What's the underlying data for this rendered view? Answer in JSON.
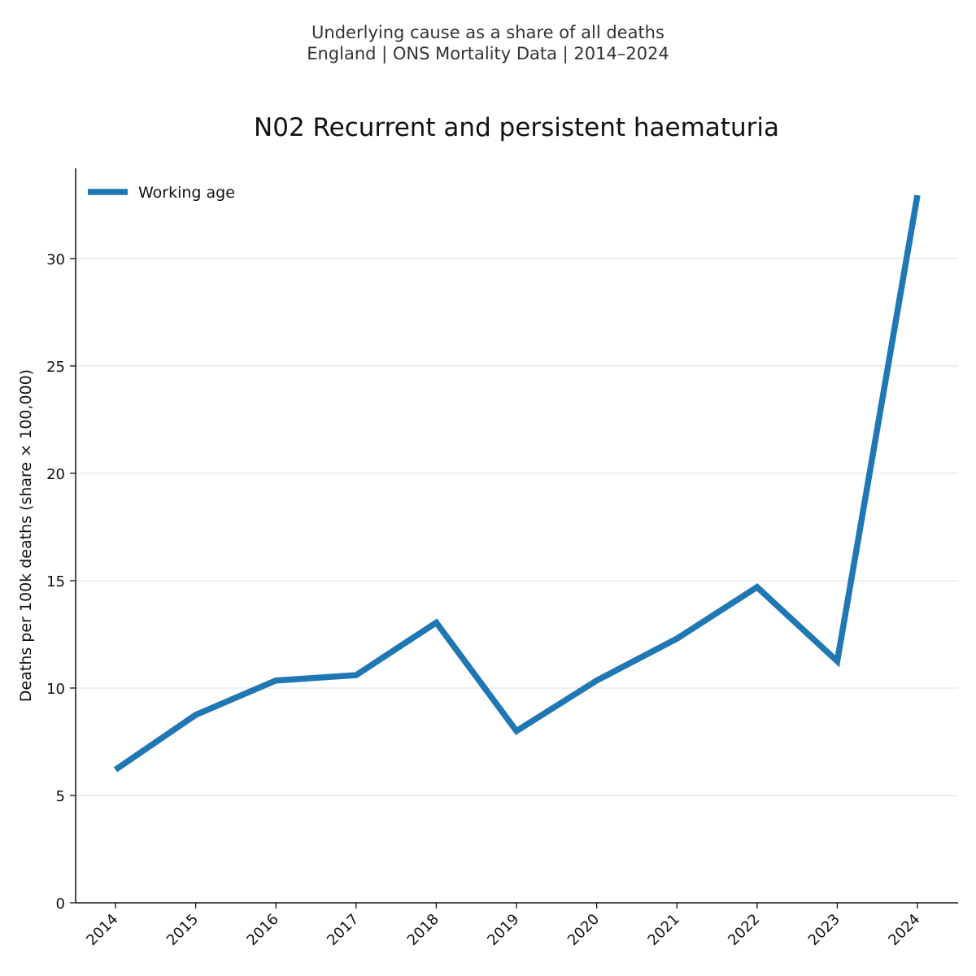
{
  "header": {
    "subtitle_line1": "Underlying cause as a share of all deaths",
    "subtitle_line2": "England | ONS Mortality Data | 2014–2024"
  },
  "chart_data": {
    "type": "line",
    "title": "N02 Recurrent and persistent haematuria",
    "xlabel": "",
    "ylabel": "Deaths per 100k deaths (share × 100,000)",
    "categories": [
      "2014",
      "2015",
      "2016",
      "2017",
      "2018",
      "2019",
      "2020",
      "2021",
      "2022",
      "2023",
      "2024"
    ],
    "yticks": [
      0,
      5,
      10,
      15,
      20,
      25,
      30
    ],
    "ylim": [
      0,
      34.2
    ],
    "grid": "horizontal",
    "legend_position": "top-left",
    "series": [
      {
        "name": "Working age",
        "color": "#1f77b4",
        "values": [
          6.2,
          8.75,
          10.35,
          10.6,
          13.05,
          8.0,
          10.35,
          12.3,
          14.7,
          11.25,
          32.95
        ]
      }
    ]
  }
}
